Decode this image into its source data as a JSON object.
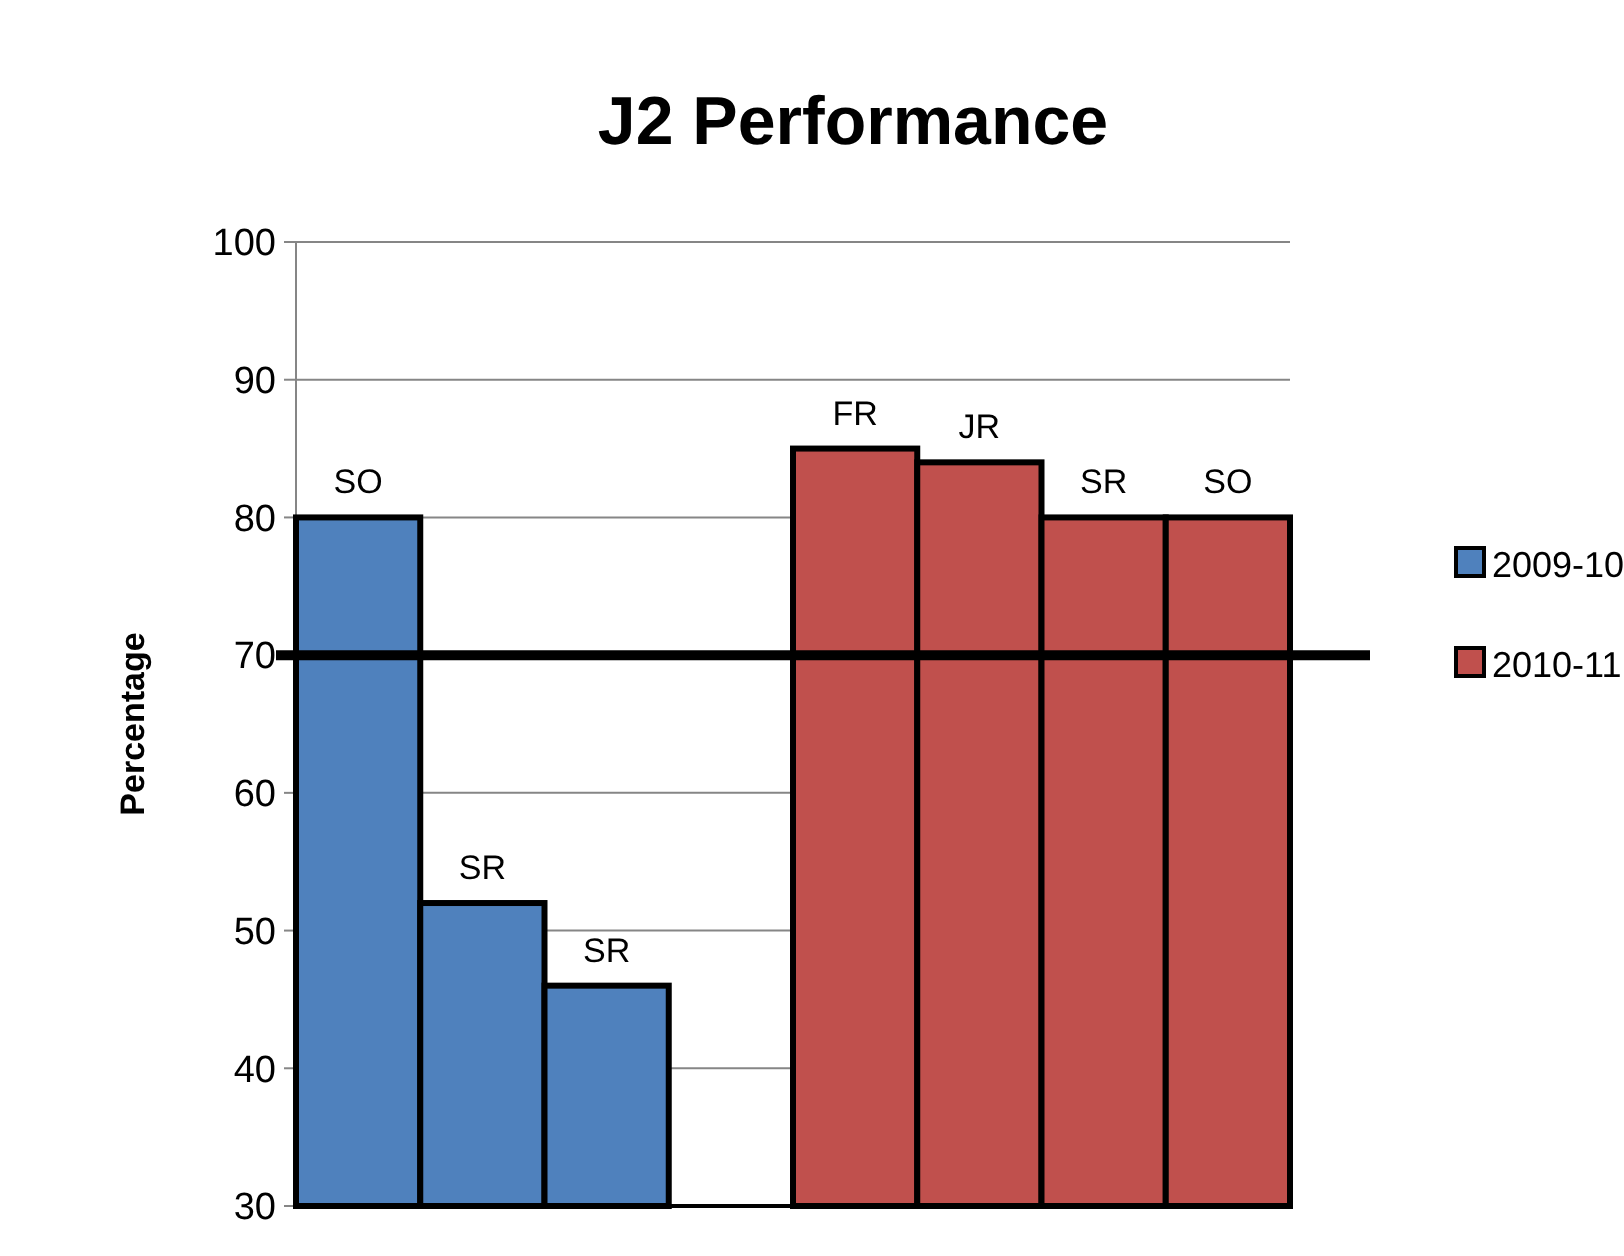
{
  "chart_data": {
    "type": "bar",
    "title": "J2 Performance",
    "ylabel": "Percentage",
    "categories": [
      null,
      null,
      null,
      null,
      null,
      null,
      null,
      null
    ],
    "series": [
      {
        "name": "2009-10",
        "color": "#4f81bd",
        "values": [
          80,
          52,
          46,
          null,
          null,
          null,
          null,
          null
        ],
        "value_labels": [
          "SO",
          "SR",
          "SR",
          null,
          null,
          null,
          null,
          null
        ]
      },
      {
        "name": "2010-11",
        "color": "#c0504d",
        "values": [
          null,
          null,
          null,
          null,
          85,
          84,
          80,
          80
        ],
        "value_labels": [
          null,
          null,
          null,
          null,
          "FR",
          "JR",
          "SR",
          "SO"
        ]
      }
    ],
    "ylim": [
      30,
      100
    ],
    "yticks": [
      30,
      40,
      50,
      60,
      70,
      80,
      90,
      100
    ],
    "grid": "y",
    "legend": "right",
    "ref_lines": [
      {
        "axis": "y",
        "value": 70,
        "color": "#000000"
      }
    ]
  }
}
